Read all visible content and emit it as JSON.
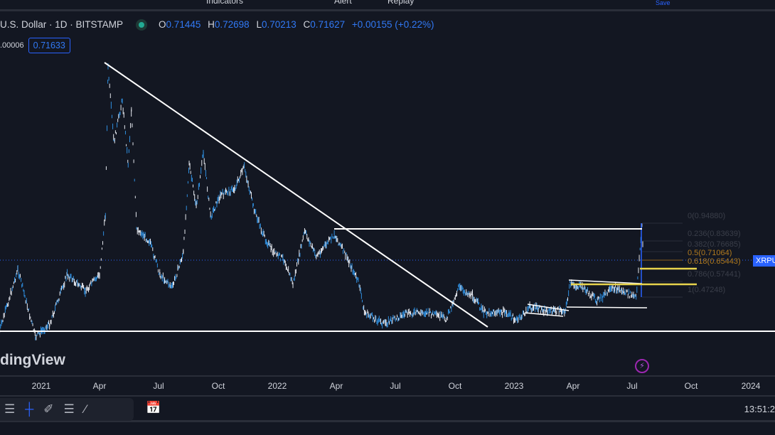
{
  "toolbar": {
    "indicators": "Indicators",
    "alert": "Alert",
    "replay": "Replay",
    "save": "Save"
  },
  "legend": {
    "symbol": "U.S. Dollar · 1D · BITSTAMP",
    "open_label": "O",
    "open": "0.71445",
    "high_label": "H",
    "high": "0.72698",
    "low_label": "L",
    "low": "0.70213",
    "close_label": "C",
    "close": "0.71627",
    "change": "+0.00155 (+0.22%)",
    "spread": ".00006",
    "price_badge": "0.71633"
  },
  "price_label": "XRPU",
  "fib_levels": [
    {
      "label": "0(0.94880)",
      "color": "#3a3e49"
    },
    {
      "label": "0.236(0.83639)",
      "color": "#3a3e49"
    },
    {
      "label": "0.382(0.76685)",
      "color": "#3a3e49"
    },
    {
      "label": "0.5(0.71064)",
      "color": "#b07a1e"
    },
    {
      "label": "0.618(0.65443)",
      "color": "#b07a1e"
    },
    {
      "label": "0.786(0.57441)",
      "color": "#3a3e49"
    },
    {
      "label": "1(0.47248)",
      "color": "#3a3e49"
    }
  ],
  "watermark": "dingView",
  "time_axis": [
    "2021",
    "Apr",
    "Jul",
    "Oct",
    "2022",
    "Apr",
    "Jul",
    "Oct",
    "2023",
    "Apr",
    "Jul",
    "Oct",
    "2024"
  ],
  "clock": "13:51:2",
  "colors": {
    "background": "#131722",
    "series": "#2f8fe0",
    "accent": "#2962ff",
    "drawing": "#ffffff",
    "highlight": "#e8d44d"
  },
  "chart_data": {
    "type": "line",
    "interval": "1D",
    "series": [
      [
        "2020-10-29",
        0.29
      ],
      [
        "2020-11-26",
        0.66
      ],
      [
        "2020-12-23",
        0.25
      ],
      [
        "2021-01-14",
        0.33
      ],
      [
        "2021-02-10",
        0.63
      ],
      [
        "2021-03-10",
        0.53
      ],
      [
        "2021-04-01",
        0.63
      ],
      [
        "2021-04-10",
        1.0
      ],
      [
        "2021-04-14",
        1.88
      ],
      [
        "2021-04-23",
        1.43
      ],
      [
        "2021-05-06",
        1.69
      ],
      [
        "2021-05-15",
        1.3
      ],
      [
        "2021-05-20",
        1.63
      ],
      [
        "2021-05-28",
        0.91
      ],
      [
        "2021-06-17",
        0.83
      ],
      [
        "2021-07-03",
        0.63
      ],
      [
        "2021-07-22",
        0.55
      ],
      [
        "2021-08-08",
        0.76
      ],
      [
        "2021-08-17",
        1.3
      ],
      [
        "2021-08-28",
        1.04
      ],
      [
        "2021-09-08",
        1.37
      ],
      [
        "2021-09-19",
        0.98
      ],
      [
        "2021-10-04",
        1.11
      ],
      [
        "2021-10-26",
        1.15
      ],
      [
        "2021-11-10",
        1.28
      ],
      [
        "2021-11-24",
        1.04
      ],
      [
        "2021-12-09",
        0.87
      ],
      [
        "2021-12-25",
        0.76
      ],
      [
        "2022-01-11",
        0.72
      ],
      [
        "2022-01-24",
        0.57
      ],
      [
        "2022-02-11",
        0.89
      ],
      [
        "2022-03-01",
        0.74
      ],
      [
        "2022-03-29",
        0.87
      ],
      [
        "2022-04-19",
        0.72
      ],
      [
        "2022-05-06",
        0.57
      ],
      [
        "2022-05-14",
        0.4
      ],
      [
        "2022-06-13",
        0.33
      ],
      [
        "2022-07-16",
        0.39
      ],
      [
        "2022-08-18",
        0.4
      ],
      [
        "2022-09-18",
        0.36
      ],
      [
        "2022-10-06",
        0.55
      ],
      [
        "2022-10-28",
        0.5
      ],
      [
        "2022-11-14",
        0.4
      ],
      [
        "2022-12-17",
        0.4
      ],
      [
        "2023-01-05",
        0.35
      ],
      [
        "2023-01-24",
        0.43
      ],
      [
        "2023-02-20",
        0.41
      ],
      [
        "2023-03-20",
        0.41
      ],
      [
        "2023-03-27",
        0.57
      ],
      [
        "2023-04-16",
        0.55
      ],
      [
        "2023-05-08",
        0.47
      ],
      [
        "2023-06-04",
        0.55
      ],
      [
        "2023-07-07",
        0.49
      ],
      [
        "2023-07-16",
        0.93
      ],
      [
        "2023-07-18",
        0.72
      ]
    ]
  }
}
